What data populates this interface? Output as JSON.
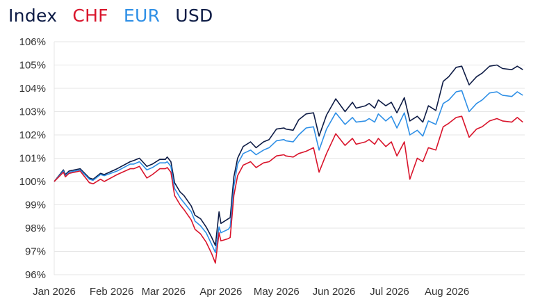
{
  "legend": {
    "items": [
      {
        "label": "Index",
        "color": "#0d1b45"
      },
      {
        "label": "CHF",
        "color": "#d9142b"
      },
      {
        "label": "EUR",
        "color": "#2e8fe6"
      },
      {
        "label": "USD",
        "color": "#0d1b45"
      }
    ]
  },
  "chart_data": {
    "type": "line",
    "title": "",
    "xlabel": "",
    "ylabel": "",
    "x_tick_labels": [
      "Jan 2026",
      "Feb 2026",
      "Mar 2026",
      "Apr 2026",
      "May 2026",
      "Jun 2026",
      "Jul 2026",
      "Aug 2026"
    ],
    "y_tick_labels": [
      "96%",
      "97%",
      "98%",
      "99%",
      "100%",
      "101%",
      "102%",
      "103%",
      "104%",
      "105%",
      "106%"
    ],
    "ylim": [
      96,
      106
    ],
    "xlim": [
      "2026-01-01",
      "2026-09-12"
    ],
    "grid": "horizontal",
    "legend_position": "top-left",
    "series": [
      {
        "name": "USD",
        "color": "#0d1b45",
        "x": [
          "2026-01-01",
          "2026-01-06",
          "2026-01-07",
          "2026-01-09",
          "2026-01-15",
          "2026-01-20",
          "2026-01-22",
          "2026-01-26",
          "2026-01-28",
          "2026-02-04",
          "2026-02-11",
          "2026-02-13",
          "2026-02-16",
          "2026-02-20",
          "2026-02-23",
          "2026-02-27",
          "2026-03-02",
          "2026-03-03",
          "2026-03-05",
          "2026-03-07",
          "2026-03-10",
          "2026-03-12",
          "2026-03-16",
          "2026-03-18",
          "2026-03-21",
          "2026-03-24",
          "2026-03-27",
          "2026-03-29",
          "2026-03-31",
          "2026-04-01",
          "2026-04-05",
          "2026-04-06",
          "2026-04-08",
          "2026-04-10",
          "2026-04-13",
          "2026-04-17",
          "2026-04-20",
          "2026-04-24",
          "2026-04-27",
          "2026-05-01",
          "2026-05-05",
          "2026-05-06",
          "2026-05-10",
          "2026-05-13",
          "2026-05-17",
          "2026-05-21",
          "2026-05-24",
          "2026-05-28",
          "2026-06-02",
          "2026-06-07",
          "2026-06-11",
          "2026-06-13",
          "2026-06-18",
          "2026-06-20",
          "2026-06-23",
          "2026-06-25",
          "2026-06-29",
          "2026-07-02",
          "2026-07-05",
          "2026-07-09",
          "2026-07-12",
          "2026-07-16",
          "2026-07-19",
          "2026-07-22",
          "2026-07-26",
          "2026-07-30",
          "2026-08-02",
          "2026-08-06",
          "2026-08-09",
          "2026-08-13",
          "2026-08-17",
          "2026-08-20",
          "2026-08-24",
          "2026-08-28",
          "2026-08-31",
          "2026-09-05",
          "2026-09-08",
          "2026-09-11"
        ],
        "y": [
          100.0,
          100.5,
          100.3,
          100.45,
          100.55,
          100.15,
          100.1,
          100.35,
          100.3,
          100.55,
          100.85,
          100.9,
          101.0,
          100.65,
          100.75,
          100.95,
          100.95,
          101.05,
          100.85,
          99.95,
          99.55,
          99.4,
          98.95,
          98.55,
          98.4,
          98.05,
          97.6,
          97.25,
          98.7,
          98.2,
          98.4,
          98.45,
          100.2,
          101.0,
          101.5,
          101.7,
          101.45,
          101.7,
          101.8,
          102.25,
          102.3,
          102.25,
          102.2,
          102.65,
          102.9,
          102.95,
          101.95,
          102.85,
          103.55,
          103.0,
          103.4,
          103.15,
          103.25,
          103.35,
          103.15,
          103.5,
          103.25,
          103.4,
          102.95,
          103.6,
          102.6,
          102.8,
          102.55,
          103.25,
          103.05,
          104.3,
          104.5,
          104.9,
          104.95,
          104.15,
          104.5,
          104.65,
          104.95,
          105.0,
          104.85,
          104.8,
          104.95,
          104.8
        ]
      },
      {
        "name": "EUR",
        "color": "#2e8fe6",
        "x": [
          "2026-01-01",
          "2026-01-06",
          "2026-01-07",
          "2026-01-09",
          "2026-01-15",
          "2026-01-20",
          "2026-01-22",
          "2026-01-26",
          "2026-01-28",
          "2026-02-04",
          "2026-02-11",
          "2026-02-13",
          "2026-02-16",
          "2026-02-20",
          "2026-02-23",
          "2026-02-27",
          "2026-03-02",
          "2026-03-03",
          "2026-03-05",
          "2026-03-07",
          "2026-03-10",
          "2026-03-12",
          "2026-03-16",
          "2026-03-18",
          "2026-03-21",
          "2026-03-24",
          "2026-03-27",
          "2026-03-29",
          "2026-03-31",
          "2026-04-01",
          "2026-04-05",
          "2026-04-06",
          "2026-04-08",
          "2026-04-10",
          "2026-04-13",
          "2026-04-17",
          "2026-04-20",
          "2026-04-24",
          "2026-04-27",
          "2026-05-01",
          "2026-05-05",
          "2026-05-06",
          "2026-05-10",
          "2026-05-13",
          "2026-05-17",
          "2026-05-21",
          "2026-05-24",
          "2026-05-28",
          "2026-06-02",
          "2026-06-07",
          "2026-06-11",
          "2026-06-13",
          "2026-06-18",
          "2026-06-20",
          "2026-06-23",
          "2026-06-25",
          "2026-06-29",
          "2026-07-02",
          "2026-07-05",
          "2026-07-09",
          "2026-07-12",
          "2026-07-16",
          "2026-07-19",
          "2026-07-22",
          "2026-07-26",
          "2026-07-30",
          "2026-08-02",
          "2026-08-06",
          "2026-08-09",
          "2026-08-13",
          "2026-08-17",
          "2026-08-20",
          "2026-08-24",
          "2026-08-28",
          "2026-08-31",
          "2026-09-05",
          "2026-09-08",
          "2026-09-11"
        ],
        "y": [
          100.0,
          100.45,
          100.25,
          100.4,
          100.5,
          100.1,
          100.05,
          100.3,
          100.25,
          100.45,
          100.75,
          100.75,
          100.85,
          100.5,
          100.6,
          100.8,
          100.8,
          100.85,
          100.65,
          99.7,
          99.3,
          99.1,
          98.7,
          98.3,
          98.1,
          97.8,
          97.3,
          96.95,
          98.05,
          97.8,
          97.95,
          98.05,
          99.8,
          100.75,
          101.2,
          101.35,
          101.15,
          101.35,
          101.45,
          101.75,
          101.8,
          101.75,
          101.7,
          102.0,
          102.3,
          102.35,
          101.35,
          102.25,
          102.95,
          102.45,
          102.75,
          102.55,
          102.6,
          102.7,
          102.55,
          102.9,
          102.6,
          102.8,
          102.3,
          102.95,
          102.0,
          102.2,
          101.95,
          102.6,
          102.45,
          103.35,
          103.5,
          103.85,
          103.9,
          103.0,
          103.35,
          103.5,
          103.8,
          103.85,
          103.7,
          103.65,
          103.85,
          103.7
        ]
      },
      {
        "name": "CHF",
        "color": "#d9142b",
        "x": [
          "2026-01-01",
          "2026-01-06",
          "2026-01-07",
          "2026-01-09",
          "2026-01-15",
          "2026-01-20",
          "2026-01-22",
          "2026-01-26",
          "2026-01-28",
          "2026-02-04",
          "2026-02-11",
          "2026-02-13",
          "2026-02-16",
          "2026-02-20",
          "2026-02-23",
          "2026-02-27",
          "2026-03-02",
          "2026-03-03",
          "2026-03-05",
          "2026-03-07",
          "2026-03-10",
          "2026-03-12",
          "2026-03-16",
          "2026-03-18",
          "2026-03-21",
          "2026-03-24",
          "2026-03-27",
          "2026-03-29",
          "2026-03-31",
          "2026-04-01",
          "2026-04-05",
          "2026-04-06",
          "2026-04-08",
          "2026-04-10",
          "2026-04-13",
          "2026-04-17",
          "2026-04-20",
          "2026-04-24",
          "2026-04-27",
          "2026-05-01",
          "2026-05-05",
          "2026-05-06",
          "2026-05-10",
          "2026-05-13",
          "2026-05-17",
          "2026-05-21",
          "2026-05-24",
          "2026-05-28",
          "2026-06-02",
          "2026-06-07",
          "2026-06-11",
          "2026-06-13",
          "2026-06-18",
          "2026-06-20",
          "2026-06-23",
          "2026-06-25",
          "2026-06-29",
          "2026-07-02",
          "2026-07-05",
          "2026-07-09",
          "2026-07-12",
          "2026-07-16",
          "2026-07-19",
          "2026-07-22",
          "2026-07-26",
          "2026-07-30",
          "2026-08-02",
          "2026-08-06",
          "2026-08-09",
          "2026-08-13",
          "2026-08-17",
          "2026-08-20",
          "2026-08-24",
          "2026-08-28",
          "2026-08-31",
          "2026-09-05",
          "2026-09-08",
          "2026-09-11"
        ],
        "y": [
          100.0,
          100.4,
          100.2,
          100.35,
          100.45,
          99.95,
          99.9,
          100.1,
          100.0,
          100.3,
          100.55,
          100.55,
          100.65,
          100.15,
          100.3,
          100.55,
          100.55,
          100.6,
          100.4,
          99.4,
          99.0,
          98.8,
          98.35,
          97.95,
          97.75,
          97.4,
          96.9,
          96.5,
          97.8,
          97.45,
          97.55,
          97.6,
          99.4,
          100.25,
          100.7,
          100.85,
          100.6,
          100.8,
          100.85,
          101.1,
          101.15,
          101.1,
          101.05,
          101.2,
          101.3,
          101.45,
          100.4,
          101.2,
          102.05,
          101.55,
          101.85,
          101.6,
          101.7,
          101.8,
          101.6,
          101.85,
          101.5,
          101.7,
          101.1,
          101.7,
          100.1,
          101.0,
          100.85,
          101.45,
          101.35,
          102.35,
          102.5,
          102.75,
          102.8,
          101.9,
          102.25,
          102.35,
          102.6,
          102.7,
          102.6,
          102.55,
          102.75,
          102.55
        ]
      }
    ]
  }
}
